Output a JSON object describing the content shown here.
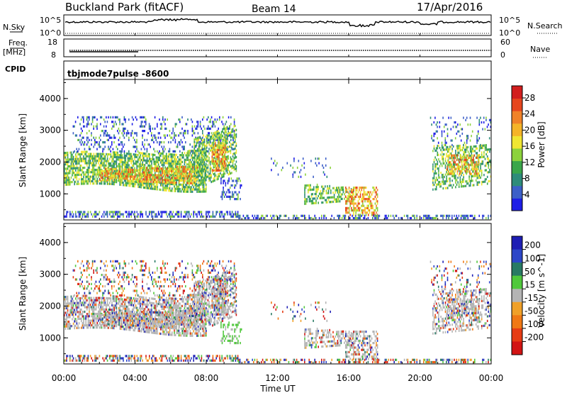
{
  "header": {
    "station": "Buckland Park (fitACF)",
    "beam": "Beam 14",
    "date": "17/Apr/2016"
  },
  "top_panels": {
    "nsky_label": "N.Sky",
    "nsearch_label": "N.Search",
    "nsky_ticks": [
      "10^5",
      "10^0"
    ],
    "nsearch_ticks": [
      "10^5",
      "10^0"
    ],
    "freq_label_1": "Freq.",
    "freq_label_2": "[MHz]",
    "freq_ticks": [
      "18",
      "8"
    ],
    "nave_label": "Nave",
    "nave_ticks": [
      "60",
      "0"
    ],
    "cpid_label": "CPID",
    "cpid_value": "tbjmode7pulse -8600"
  },
  "chart_data": [
    {
      "type": "heatmap",
      "name": "Power",
      "ylabel": "Slant Range [km]",
      "ylim": [
        180,
        4600
      ],
      "yticks": [
        1000,
        2000,
        3000,
        4000
      ],
      "colorbar_label": "Power [dB]",
      "colorbar_ticks": [
        4,
        8,
        12,
        16,
        20,
        24,
        28
      ],
      "colorbar_range": [
        0,
        31
      ],
      "colors": [
        "#1e1ee6",
        "#3c5fc8",
        "#2e8c7a",
        "#3aa64a",
        "#8cd23c",
        "#f0e632",
        "#f5b428",
        "#f08228",
        "#e6461e",
        "#d21e1e"
      ]
    },
    {
      "type": "heatmap",
      "name": "Velocity",
      "ylabel": "Slant Range [km]",
      "ylim": [
        180,
        4600
      ],
      "yticks": [
        1000,
        2000,
        3000,
        4000
      ],
      "colorbar_label": "Velocity [m s^-1]",
      "colorbar_ticks": [
        200,
        100,
        50,
        15,
        -15,
        -50,
        -100,
        -200
      ],
      "colors": [
        "#1e1eb4",
        "#2d46c8",
        "#287a64",
        "#50c83c",
        "#b4b4b4",
        "#f0a028",
        "#f07814",
        "#e63c14",
        "#d21414"
      ]
    }
  ],
  "time_axis": {
    "ticks": [
      "00:00",
      "04:00",
      "08:00",
      "12:00",
      "16:00",
      "20:00",
      "00:00"
    ],
    "label": "Time UT"
  }
}
